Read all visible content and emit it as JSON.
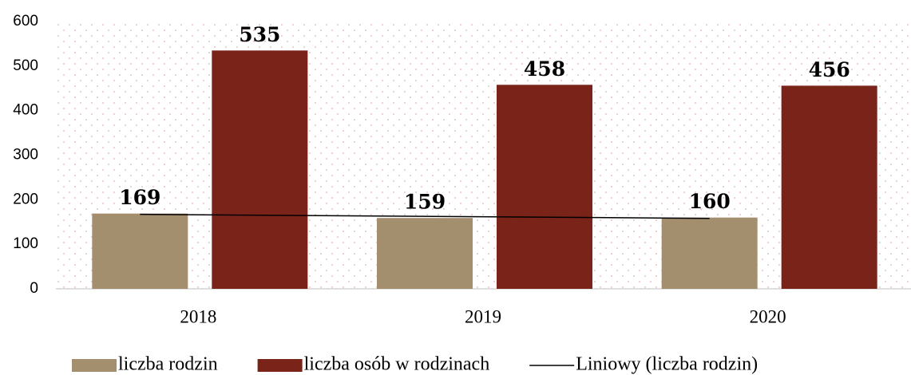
{
  "chart_data": {
    "type": "bar",
    "categories": [
      "2018",
      "2019",
      "2020"
    ],
    "series": [
      {
        "name": "liczba rodzin",
        "color": "#a38e6e",
        "values": [
          169,
          159,
          160
        ]
      },
      {
        "name": "liczba osób w rodzinach",
        "color": "#7a2318",
        "values": [
          535,
          458,
          456
        ]
      }
    ],
    "trendline": {
      "name": "Liniowy (liczba rodzin)",
      "series": 0,
      "kind": "linear",
      "color": "#000000"
    },
    "ylim": [
      0,
      600
    ],
    "yticks": [
      0,
      100,
      200,
      300,
      400,
      500,
      600
    ],
    "grid": false,
    "data_labels": true,
    "legend": "bottom"
  }
}
